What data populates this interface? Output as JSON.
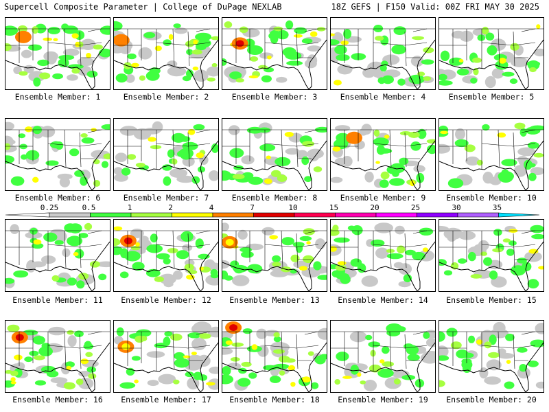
{
  "header": {
    "title": "Supercell Composite Parameter | College of DuPage NEXLAB",
    "valid": "18Z GEFS | F150 Valid: 00Z FRI MAY 30 2025"
  },
  "caption_prefix": "Ensemble Member: ",
  "members": [
    {
      "label": "Ensemble Member: 1",
      "max_color": "#ff8000",
      "intensity": 0.8
    },
    {
      "label": "Ensemble Member: 2",
      "max_color": "#ff8000",
      "intensity": 0.75
    },
    {
      "label": "Ensemble Member: 3",
      "max_color": "#e00000",
      "intensity": 0.8
    },
    {
      "label": "Ensemble Member: 4",
      "max_color": "#ffff00",
      "intensity": 0.45
    },
    {
      "label": "Ensemble Member: 5",
      "max_color": "#ffff00",
      "intensity": 0.5
    },
    {
      "label": "Ensemble Member: 6",
      "max_color": "#ffff00",
      "intensity": 0.45
    },
    {
      "label": "Ensemble Member: 7",
      "max_color": "#ffff00",
      "intensity": 0.5
    },
    {
      "label": "Ensemble Member: 8",
      "max_color": "#bfff00",
      "intensity": 0.45
    },
    {
      "label": "Ensemble Member: 9",
      "max_color": "#ff8000",
      "intensity": 0.6
    },
    {
      "label": "Ensemble Member: 10",
      "max_color": "#bfff00",
      "intensity": 0.35
    },
    {
      "label": "Ensemble Member: 11",
      "max_color": "#ffff00",
      "intensity": 0.35
    },
    {
      "label": "Ensemble Member: 12",
      "max_color": "#e00000",
      "intensity": 0.7
    },
    {
      "label": "Ensemble Member: 13",
      "max_color": "#ffff00",
      "intensity": 0.6
    },
    {
      "label": "Ensemble Member: 14",
      "max_color": "#ffff00",
      "intensity": 0.5
    },
    {
      "label": "Ensemble Member: 15",
      "max_color": "#ffff00",
      "intensity": 0.45
    },
    {
      "label": "Ensemble Member: 16",
      "max_color": "#e00000",
      "intensity": 0.85
    },
    {
      "label": "Ensemble Member: 17",
      "max_color": "#ffff00",
      "intensity": 0.6
    },
    {
      "label": "Ensemble Member: 18",
      "max_color": "#e00000",
      "intensity": 0.85
    },
    {
      "label": "Ensemble Member: 19",
      "max_color": "#ffff00",
      "intensity": 0.55
    },
    {
      "label": "Ensemble Member: 20",
      "max_color": "#bfff00",
      "intensity": 0.35
    }
  ],
  "colorbar": {
    "labels": [
      "0.25",
      "0.5",
      "1",
      "2",
      "4",
      "7",
      "10",
      "15",
      "20",
      "25",
      "30",
      "35"
    ],
    "colors": [
      "#cccccc",
      "#40ff40",
      "#a6ff40",
      "#ffff00",
      "#ff8000",
      "#e00000",
      "#ff0050",
      "#ff00b0",
      "#ff00ff",
      "#9000ff",
      "#b060ff",
      "#00e0ff"
    ],
    "units": ""
  },
  "map_style": {
    "background": "#ffffff",
    "state_lines": "#000000",
    "ocean": "#ffffff"
  }
}
